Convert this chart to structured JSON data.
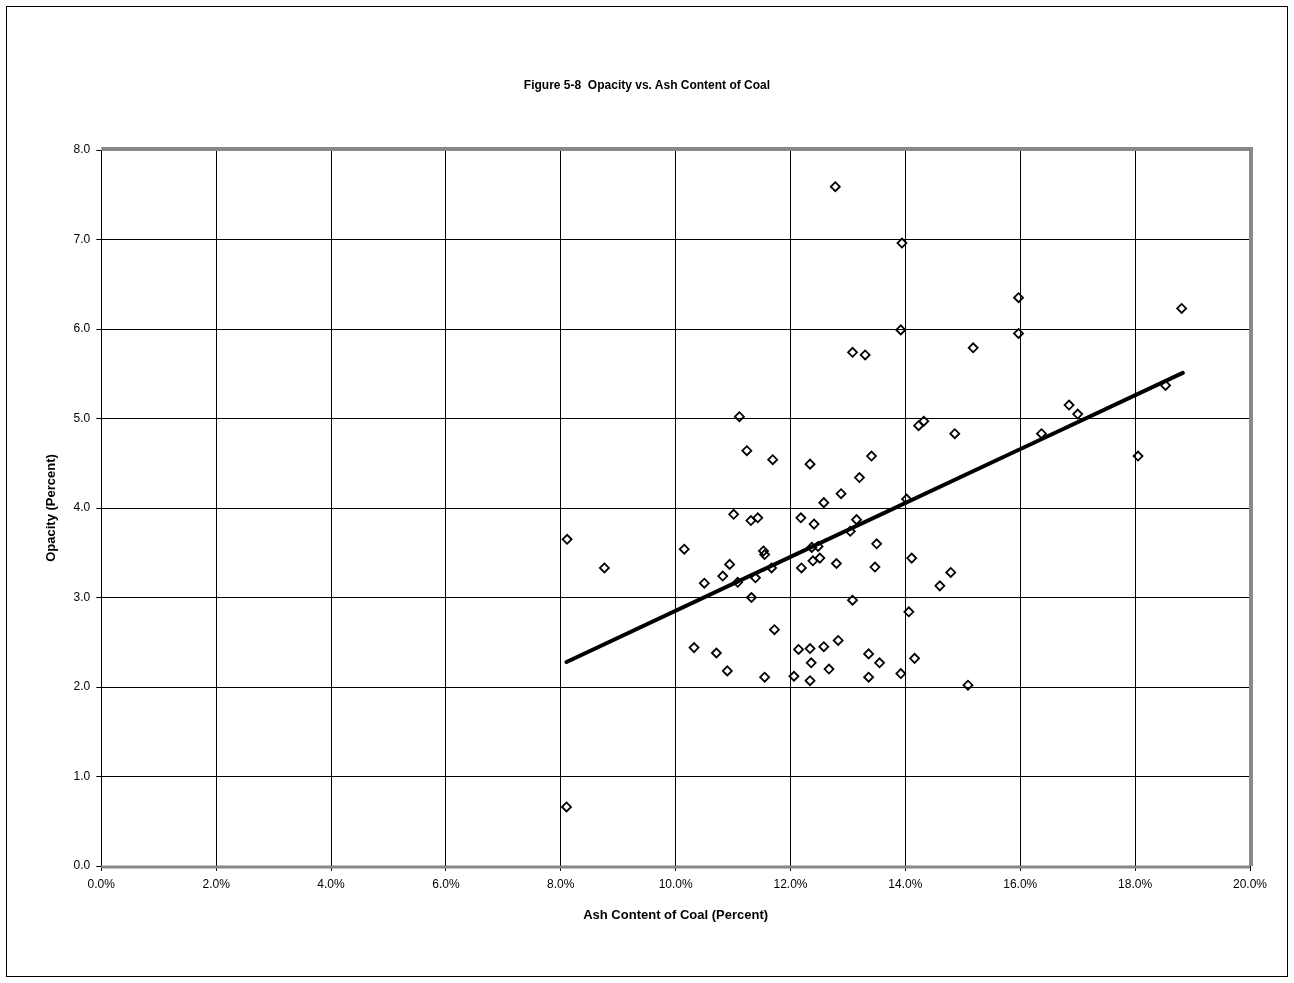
{
  "chart_data": {
    "type": "scatter",
    "title": "Figure 5-8  Opacity vs. Ash Content of Coal",
    "xlabel": "Ash Content of Coal (Percent)",
    "ylabel": "Opacity (Percent)",
    "xlim": [
      0,
      20
    ],
    "ylim": [
      0,
      8
    ],
    "xticks": [
      {
        "value": 0,
        "label": "0.0%"
      },
      {
        "value": 2,
        "label": "2.0%"
      },
      {
        "value": 4,
        "label": "4.0%"
      },
      {
        "value": 6,
        "label": "6.0%"
      },
      {
        "value": 8,
        "label": "8.0%"
      },
      {
        "value": 10,
        "label": "10.0%"
      },
      {
        "value": 12,
        "label": "12.0%"
      },
      {
        "value": 14,
        "label": "14.0%"
      },
      {
        "value": 16,
        "label": "16.0%"
      },
      {
        "value": 18,
        "label": "18.0%"
      },
      {
        "value": 20,
        "label": "20.0%"
      }
    ],
    "yticks": [
      {
        "value": 0,
        "label": "0.0"
      },
      {
        "value": 1,
        "label": "1.0"
      },
      {
        "value": 2,
        "label": "2.0"
      },
      {
        "value": 3,
        "label": "3.0"
      },
      {
        "value": 4,
        "label": "4.0"
      },
      {
        "value": 5,
        "label": "5.0"
      },
      {
        "value": 6,
        "label": "6.0"
      },
      {
        "value": 7,
        "label": "7.0"
      },
      {
        "value": 8,
        "label": "8.0"
      }
    ],
    "grid": true,
    "legend": false,
    "series": [
      {
        "type": "scatter",
        "marker": "diamond",
        "color": "#000000",
        "x": [
          8.11,
          8.1,
          8.76,
          10.15,
          10.32,
          10.5,
          10.71,
          10.82,
          10.9,
          10.94,
          11.01,
          11.08,
          11.11,
          11.24,
          11.31,
          11.32,
          11.39,
          11.43,
          11.53,
          11.55,
          11.55,
          11.67,
          11.69,
          11.72,
          12.06,
          12.14,
          12.18,
          12.19,
          12.34,
          12.34,
          12.34,
          12.36,
          12.37,
          12.39,
          12.41,
          12.48,
          12.51,
          12.58,
          12.58,
          12.67,
          12.78,
          12.8,
          12.83,
          12.88,
          13.04,
          13.08,
          13.08,
          13.15,
          13.2,
          13.3,
          13.36,
          13.36,
          13.41,
          13.47,
          13.5,
          13.55,
          13.92,
          13.94,
          13.92,
          14.02,
          14.06,
          14.11,
          14.16,
          14.23,
          14.32,
          14.6,
          14.79,
          14.86,
          15.09,
          15.18,
          15.97,
          15.97,
          16.37,
          16.85,
          17.0,
          18.05,
          18.53,
          18.81
        ],
        "values": [
          3.65,
          0.66,
          3.33,
          3.54,
          2.44,
          3.16,
          2.38,
          3.24,
          2.18,
          3.37,
          3.93,
          3.17,
          5.02,
          4.64,
          3.86,
          3.0,
          3.22,
          3.89,
          3.52,
          3.48,
          2.11,
          3.33,
          4.54,
          2.64,
          2.12,
          2.42,
          3.89,
          3.33,
          4.49,
          2.43,
          2.07,
          2.27,
          3.56,
          3.41,
          3.82,
          3.57,
          3.44,
          4.06,
          2.45,
          2.2,
          7.59,
          3.38,
          2.52,
          4.16,
          3.74,
          2.97,
          5.74,
          3.87,
          4.34,
          5.71,
          2.37,
          2.11,
          4.58,
          3.34,
          3.6,
          2.27,
          2.15,
          6.96,
          5.99,
          4.1,
          2.84,
          3.44,
          2.32,
          4.92,
          4.97,
          3.13,
          3.28,
          4.83,
          2.02,
          5.79,
          6.35,
          5.95,
          4.83,
          5.15,
          5.05,
          4.58,
          5.37,
          6.23
        ]
      },
      {
        "type": "line",
        "color": "#000000",
        "x": [
          8.1,
          18.83
        ],
        "values": [
          2.28,
          5.51
        ]
      }
    ]
  }
}
